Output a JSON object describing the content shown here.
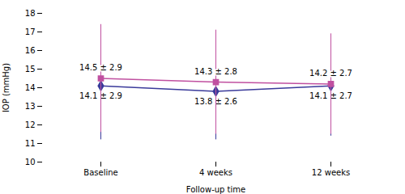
{
  "chart_data": {
    "type": "line",
    "xlabel": "Follow-up time",
    "ylabel": "IOP (mmHg)",
    "categories": [
      "Baseline",
      "4 weeks",
      "12 weeks"
    ],
    "ylim": [
      10,
      18
    ],
    "yticks": [
      10,
      11,
      12,
      13,
      14,
      15,
      16,
      17,
      18
    ],
    "grid": false,
    "data_labels": true,
    "series": [
      {
        "color": "#3A3A9A",
        "marker": "diamond",
        "line_style": "solid",
        "values": [
          14.1,
          13.8,
          14.1
        ],
        "errors": [
          2.9,
          2.6,
          2.7
        ],
        "value_labels": [
          "14.1 ± 2.9",
          "13.8 ± 2.6",
          "14.1 ± 2.7"
        ]
      },
      {
        "color": "#C050A0",
        "marker": "square",
        "line_style": "solid",
        "values": [
          14.5,
          14.3,
          14.2
        ],
        "errors": [
          2.9,
          2.8,
          2.7
        ],
        "value_labels": [
          "14.5 ± 2.9",
          "14.3 ± 2.8",
          "14.2 ± 2.7"
        ]
      }
    ]
  }
}
